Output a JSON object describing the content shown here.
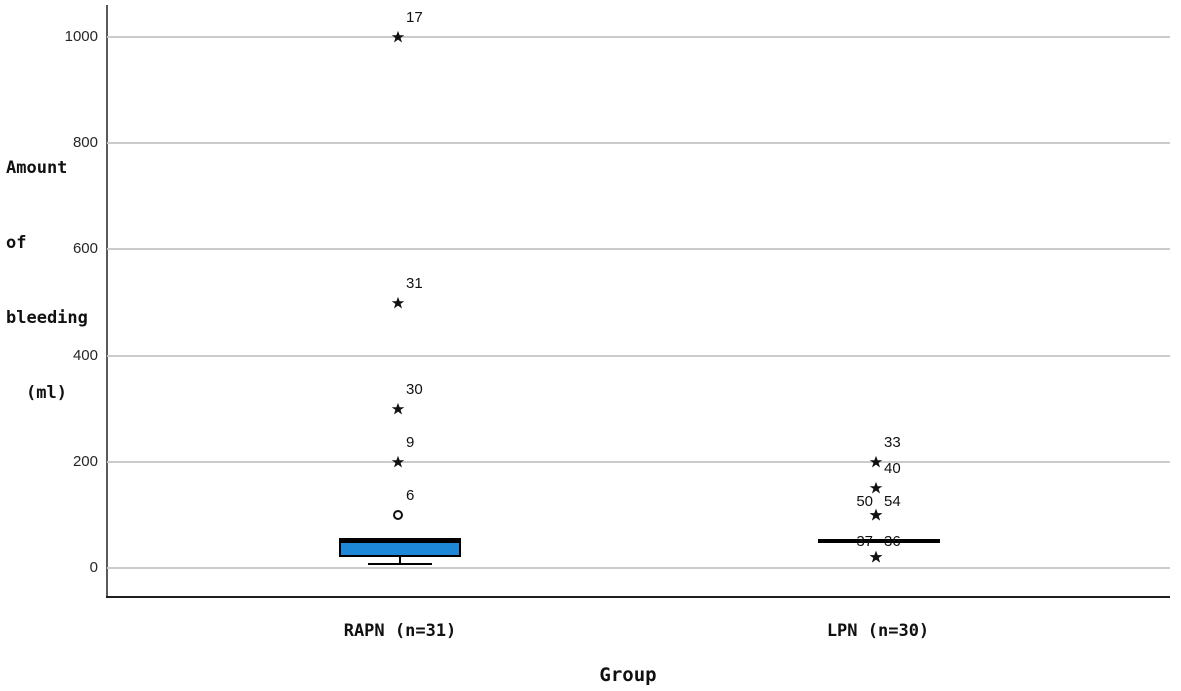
{
  "chart_data": {
    "type": "boxplot",
    "title": "",
    "y_axis": {
      "label_lines": [
        "Amount",
        "of",
        "bleeding",
        "(ml)"
      ],
      "ticks": [
        1000,
        800,
        600,
        400,
        200,
        0
      ],
      "ylim": [
        -60,
        1060
      ],
      "grid": true
    },
    "x_axis": {
      "label": "Group",
      "categories": [
        "RAPN (n=31)",
        "LPN (n=30)"
      ]
    },
    "colors": {
      "box_fill": "#1e88d8",
      "box_border": "#000000",
      "grid": "#cbcbcb",
      "axis": "#5a5a5a",
      "marker": "#111111"
    },
    "groups": [
      {
        "category": "RAPN (n=31)",
        "n": 31,
        "box": {
          "q1": 20,
          "median": 50,
          "q3": 50,
          "whisker_low": 10,
          "whisker_high": null
        },
        "outliers": [
          {
            "case": "17",
            "value": 1000,
            "marker": "star",
            "label_side": "right",
            "label_dy": 0
          },
          {
            "case": "31",
            "value": 500,
            "marker": "star",
            "label_side": "right",
            "label_dy": 0
          },
          {
            "case": "30",
            "value": 300,
            "marker": "star",
            "label_side": "right",
            "label_dy": 0
          },
          {
            "case": "9",
            "value": 200,
            "marker": "star",
            "label_side": "right",
            "label_dy": 0
          },
          {
            "case": "6",
            "value": 100,
            "marker": "circle",
            "label_side": "right",
            "label_dy": 0
          }
        ]
      },
      {
        "category": "LPN (n=30)",
        "n": 30,
        "box": {
          "q1": 50,
          "median": 50,
          "q3": 50,
          "whisker_low": null,
          "whisker_high": null
        },
        "outliers": [
          {
            "case": "33",
            "value": 200,
            "marker": "star",
            "label_side": "right",
            "label_dy": 0
          },
          {
            "case": "40",
            "value": 150,
            "marker": "star",
            "label_side": "right",
            "label_dy": 0
          },
          {
            "case": "50",
            "value": 100,
            "marker": "star",
            "label_side": "left",
            "label_dy": 6
          },
          {
            "case": "54",
            "value": 100,
            "marker": "star",
            "label_side": "right",
            "label_dy": 6
          },
          {
            "case": "37",
            "value": 20,
            "marker": "star",
            "label_side": "left",
            "label_dy": 4
          },
          {
            "case": "36",
            "value": 20,
            "marker": "star",
            "label_side": "right",
            "label_dy": 4
          }
        ]
      }
    ]
  }
}
